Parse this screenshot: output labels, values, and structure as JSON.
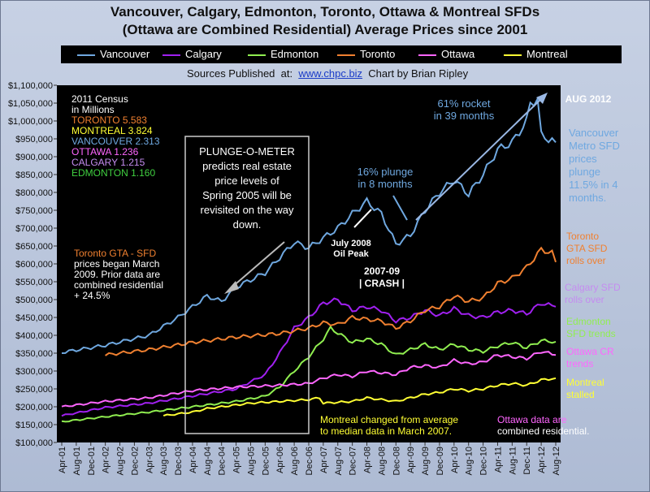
{
  "title_line1": "Vancouver, Calgary, Edmonton, Toronto, Ottawa & Montreal SFDs",
  "title_line2": "(Ottawa are Combined Residential) Average Prices since 2001",
  "legend": [
    {
      "name": "Vancouver",
      "color": "#6fa8e0"
    },
    {
      "name": "Calgary",
      "color": "#a020f0"
    },
    {
      "name": "Edmonton",
      "color": "#90ee50"
    },
    {
      "name": "Toronto",
      "color": "#f08030"
    },
    {
      "name": "Ottawa",
      "color": "#ff66ff"
    },
    {
      "name": "Montreal",
      "color": "#ffff33"
    }
  ],
  "sources": {
    "prefix": "Sources Published  at:  ",
    "link": "www.chpc.biz",
    "suffix": "  Chart by Brian Ripley"
  },
  "chart_data": {
    "type": "line",
    "background": "#000000",
    "ylim": [
      100000,
      1100000
    ],
    "ytick_step": 50000,
    "yticks": [
      "$100,000",
      "$150,000",
      "$200,000",
      "$250,000",
      "$300,000",
      "$350,000",
      "$400,000",
      "$450,000",
      "$500,000",
      "$550,000",
      "$600,000",
      "$650,000",
      "$700,000",
      "$750,000",
      "$800,000",
      "$850,000",
      "$900,000",
      "$950,000",
      "$1,000,000",
      "$1,050,000",
      "$1,100,000"
    ],
    "xticks": [
      "Apr-01",
      "Aug-01",
      "Dec-01",
      "Apr-02",
      "Aug-02",
      "Dec-02",
      "Apr-03",
      "Aug-03",
      "Dec-03",
      "Apr-04",
      "Aug-04",
      "Dec-04",
      "Apr-05",
      "Aug-05",
      "Dec-05",
      "Apr-06",
      "Aug-06",
      "Dec-06",
      "Apr-07",
      "Aug-07",
      "Dec-07",
      "Apr-08",
      "Aug-08",
      "Dec-08",
      "Apr-09",
      "Aug-09",
      "Dec-09",
      "Apr-10",
      "Aug-10",
      "Dec-10",
      "Apr-11",
      "Aug-11",
      "Dec-11",
      "Apr-12",
      "Aug-12"
    ],
    "x_period": "monthly, Apr-01 to Aug-12",
    "series": [
      {
        "name": "Vancouver",
        "color": "#6fa8e0",
        "keypoints": [
          [
            "Apr-01",
            352000
          ],
          [
            "Apr-02",
            372000
          ],
          [
            "Apr-03",
            400000
          ],
          [
            "Dec-03",
            450000
          ],
          [
            "Aug-04",
            510000
          ],
          [
            "Dec-04",
            495000
          ],
          [
            "Apr-05",
            535000
          ],
          [
            "Dec-05",
            575000
          ],
          [
            "Aug-06",
            660000
          ],
          [
            "Dec-06",
            645000
          ],
          [
            "Aug-07",
            700000
          ],
          [
            "Dec-07",
            740000
          ],
          [
            "Apr-08",
            775000
          ],
          [
            "Aug-08",
            740000
          ],
          [
            "Dec-08",
            655000
          ],
          [
            "Apr-09",
            680000
          ],
          [
            "Aug-09",
            750000
          ],
          [
            "Dec-09",
            800000
          ],
          [
            "Apr-10",
            835000
          ],
          [
            "Aug-10",
            795000
          ],
          [
            "Dec-10",
            850000
          ],
          [
            "Apr-11",
            920000
          ],
          [
            "Aug-11",
            940000
          ],
          [
            "Dec-11",
            1000000
          ],
          [
            "Jan-12",
            1050000
          ],
          [
            "Mar-12",
            1060000
          ],
          [
            "Apr-12",
            960000
          ],
          [
            "Aug-12",
            940000
          ]
        ]
      },
      {
        "name": "Calgary",
        "color": "#a020f0",
        "keypoints": [
          [
            "Apr-01",
            175000
          ],
          [
            "Apr-02",
            198000
          ],
          [
            "Apr-03",
            210000
          ],
          [
            "Apr-04",
            230000
          ],
          [
            "Apr-05",
            250000
          ],
          [
            "Dec-05",
            290000
          ],
          [
            "Apr-06",
            350000
          ],
          [
            "Aug-06",
            420000
          ],
          [
            "Dec-06",
            450000
          ],
          [
            "Apr-07",
            490000
          ],
          [
            "Aug-07",
            500000
          ],
          [
            "Dec-07",
            470000
          ],
          [
            "Apr-08",
            480000
          ],
          [
            "Aug-08",
            470000
          ],
          [
            "Dec-08",
            440000
          ],
          [
            "Apr-09",
            450000
          ],
          [
            "Aug-09",
            470000
          ],
          [
            "Dec-09",
            455000
          ],
          [
            "Apr-10",
            475000
          ],
          [
            "Aug-10",
            455000
          ],
          [
            "Dec-10",
            450000
          ],
          [
            "Apr-11",
            465000
          ],
          [
            "Aug-11",
            470000
          ],
          [
            "Dec-11",
            460000
          ],
          [
            "Apr-12",
            490000
          ],
          [
            "Aug-12",
            480000
          ]
        ]
      },
      {
        "name": "Edmonton",
        "color": "#90ee50",
        "keypoints": [
          [
            "Apr-01",
            158000
          ],
          [
            "Apr-02",
            172000
          ],
          [
            "Apr-03",
            185000
          ],
          [
            "Apr-04",
            200000
          ],
          [
            "Apr-05",
            215000
          ],
          [
            "Dec-05",
            230000
          ],
          [
            "Apr-06",
            255000
          ],
          [
            "Aug-06",
            300000
          ],
          [
            "Dec-06",
            340000
          ],
          [
            "Apr-07",
            390000
          ],
          [
            "Jun-07",
            420000
          ],
          [
            "Dec-07",
            380000
          ],
          [
            "Apr-08",
            390000
          ],
          [
            "Aug-08",
            375000
          ],
          [
            "Dec-08",
            345000
          ],
          [
            "Apr-09",
            360000
          ],
          [
            "Aug-09",
            375000
          ],
          [
            "Dec-09",
            360000
          ],
          [
            "Apr-10",
            375000
          ],
          [
            "Aug-10",
            360000
          ],
          [
            "Dec-10",
            355000
          ],
          [
            "Apr-11",
            370000
          ],
          [
            "Aug-11",
            380000
          ],
          [
            "Dec-11",
            365000
          ],
          [
            "Apr-12",
            385000
          ],
          [
            "Aug-12",
            382000
          ]
        ]
      },
      {
        "name": "Toronto",
        "color": "#f08030",
        "keypoints": [
          [
            "Apr-02",
            345000
          ],
          [
            "Apr-03",
            360000
          ],
          [
            "Apr-04",
            380000
          ],
          [
            "Apr-05",
            395000
          ],
          [
            "Apr-06",
            405000
          ],
          [
            "Dec-06",
            420000
          ],
          [
            "Apr-07",
            435000
          ],
          [
            "Aug-07",
            430000
          ],
          [
            "Dec-07",
            450000
          ],
          [
            "Apr-08",
            445000
          ],
          [
            "Aug-08",
            440000
          ],
          [
            "Dec-08",
            420000
          ],
          [
            "Apr-09",
            440000
          ],
          [
            "Aug-09",
            470000
          ],
          [
            "Dec-09",
            480000
          ],
          [
            "Apr-10",
            510000
          ],
          [
            "Aug-10",
            495000
          ],
          [
            "Dec-10",
            505000
          ],
          [
            "Apr-11",
            545000
          ],
          [
            "Aug-11",
            560000
          ],
          [
            "Dec-11",
            590000
          ],
          [
            "Apr-12",
            640000
          ],
          [
            "Jul-12",
            630000
          ],
          [
            "Aug-12",
            605000
          ]
        ]
      },
      {
        "name": "Ottawa",
        "color": "#ff66ff",
        "keypoints": [
          [
            "Apr-01",
            200000
          ],
          [
            "Apr-02",
            215000
          ],
          [
            "Apr-03",
            225000
          ],
          [
            "Apr-04",
            245000
          ],
          [
            "Apr-05",
            255000
          ],
          [
            "Apr-06",
            260000
          ],
          [
            "Dec-06",
            265000
          ],
          [
            "Apr-07",
            280000
          ],
          [
            "Aug-07",
            290000
          ],
          [
            "Dec-07",
            285000
          ],
          [
            "Apr-08",
            300000
          ],
          [
            "Aug-08",
            295000
          ],
          [
            "Dec-08",
            290000
          ],
          [
            "Apr-09",
            310000
          ],
          [
            "Aug-09",
            315000
          ],
          [
            "Dec-09",
            310000
          ],
          [
            "Apr-10",
            330000
          ],
          [
            "Aug-10",
            320000
          ],
          [
            "Dec-10",
            325000
          ],
          [
            "Apr-11",
            345000
          ],
          [
            "Aug-11",
            340000
          ],
          [
            "Dec-11",
            335000
          ],
          [
            "Apr-12",
            355000
          ],
          [
            "Aug-12",
            345000
          ]
        ]
      },
      {
        "name": "Montreal",
        "color": "#ffff33",
        "keypoints": [
          [
            "Aug-03",
            175000
          ],
          [
            "Apr-04",
            185000
          ],
          [
            "Aug-04",
            195000
          ],
          [
            "Apr-05",
            205000
          ],
          [
            "Aug-05",
            210000
          ],
          [
            "Apr-06",
            215000
          ],
          [
            "Dec-06",
            220000
          ],
          [
            "Mar-07",
            225000
          ],
          [
            "Apr-07",
            210000
          ],
          [
            "Dec-07",
            215000
          ],
          [
            "Apr-08",
            225000
          ],
          [
            "Aug-08",
            220000
          ],
          [
            "Dec-08",
            215000
          ],
          [
            "Apr-09",
            225000
          ],
          [
            "Aug-09",
            235000
          ],
          [
            "Dec-09",
            240000
          ],
          [
            "Apr-10",
            250000
          ],
          [
            "Aug-10",
            245000
          ],
          [
            "Dec-10",
            250000
          ],
          [
            "Apr-11",
            260000
          ],
          [
            "Aug-11",
            265000
          ],
          [
            "Dec-11",
            260000
          ],
          [
            "Apr-12",
            275000
          ],
          [
            "Aug-12",
            280000
          ]
        ]
      }
    ],
    "annotations": {
      "census": [
        "2011 Census",
        "in Millions",
        "TORONTO 5.583",
        "MONTREAL 3.824",
        "VANCOUVER 2.313",
        "OTTAWA 1.236",
        "CALGARY 1.215",
        "EDMONTON 1.160"
      ],
      "plunge_o_meter": [
        "PLUNGE-O-METER",
        "predicts real estate",
        "price levels of",
        "Spring 2005 will be",
        "revisited on the way",
        "down."
      ],
      "toronto_note": [
        "Toronto GTA - SFD",
        "prices began March",
        "2009. Prior data are",
        "combined residential",
        "+ 24.5%"
      ],
      "plunge16": [
        "16% plunge",
        "in 8 months"
      ],
      "rocket61": [
        "61% rocket",
        "in 39 months"
      ],
      "aug2012": "AUG 2012",
      "oil_peak": [
        "July 2008",
        "Oil Peak"
      ],
      "crash": [
        "2007-09",
        "| CRASH |"
      ],
      "vancouver_note": [
        "Vancouver",
        "Metro SFD",
        "prices",
        "plunge",
        "11.5% in 4",
        "months."
      ],
      "toronto_rolls": [
        "Toronto",
        "GTA SFD",
        "rolls over"
      ],
      "calgary_rolls": [
        "Calgary SFD",
        "rolls over"
      ],
      "edmonton_trends": [
        "Edmonton",
        "SFD trends"
      ],
      "ottawa_trends": [
        "Ottawa CR",
        "trends"
      ],
      "montreal_stalled": [
        "Montreal",
        "stalled"
      ],
      "montreal_note": [
        "Montreal changed  from average",
        "to median data in March 2007."
      ],
      "ottawa_note": [
        "Ottawa data are",
        "combined residential."
      ]
    }
  }
}
